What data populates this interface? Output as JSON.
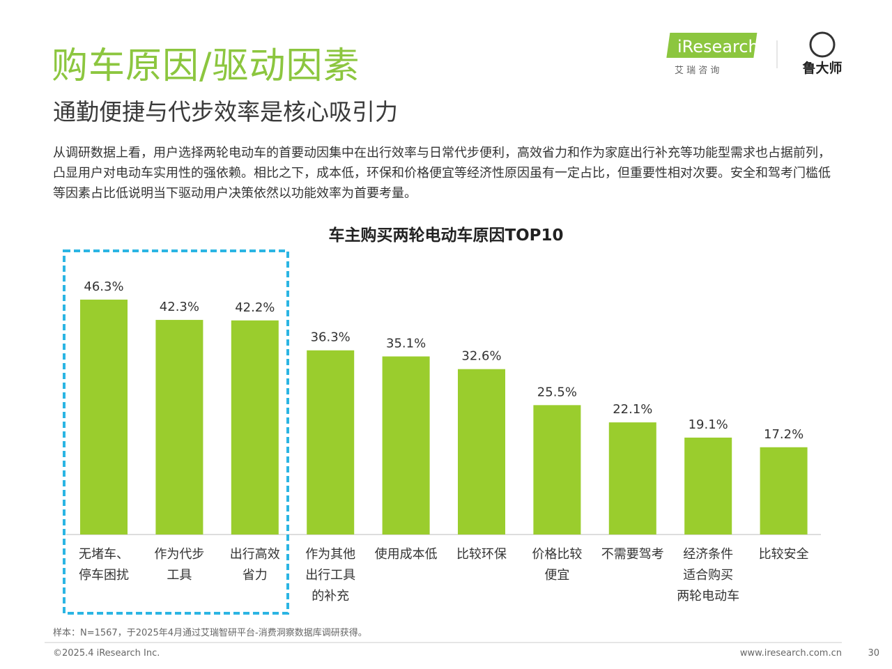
{
  "header": {
    "title": "购车原因/驱动因素",
    "subtitle": "通勤便捷与代步效率是核心吸引力",
    "body": "从调研数据上看，用户选择两轮电动车的首要动因集中在出行效率与日常代步便利，高效省力和作为家庭出行补充等功能型需求也占据前列，凸显用户对电动车实用性的强依赖。相比之下，成本低，环保和价格便宜等经济性原因虽有一定占比，但重要性相对次要。安全和驾考门槛低等因素占比低说明当下驱动用户决策依然以功能效率为首要考量。"
  },
  "logos": {
    "iresearch": "iResearch",
    "iresearch_cn": "艾 瑞 咨 询",
    "ludashi": "鲁大师"
  },
  "chart_data": {
    "type": "bar",
    "title": "车主购买两轮电动车原因TOP10",
    "categories": [
      "无堵车、\n停车困扰",
      "作为代步\n工具",
      "出行高效\n省力",
      "作为其他\n出行工具\n的补充",
      "使用成本低",
      "比较环保",
      "价格比较\n便宜",
      "不需要驾考",
      "经济条件\n适合购买\n两轮电动车",
      "比较安全"
    ],
    "values": [
      46.3,
      42.3,
      42.2,
      36.3,
      35.1,
      32.6,
      25.5,
      22.1,
      19.1,
      17.2
    ],
    "value_labels": [
      "46.3%",
      "42.3%",
      "42.2%",
      "36.3%",
      "35.1%",
      "32.6%",
      "25.5%",
      "22.1%",
      "19.1%",
      "17.2%"
    ],
    "color": "#9acd2d",
    "highlight_color": "#2bb5e3"
  },
  "footer": {
    "note": "样本：N=1567，于2025年4月通过艾瑞智研平台-消费洞察数据库调研获得。",
    "copyright": "©2025.4 iResearch Inc.",
    "url": "www.iresearch.com.cn",
    "page": "30"
  }
}
